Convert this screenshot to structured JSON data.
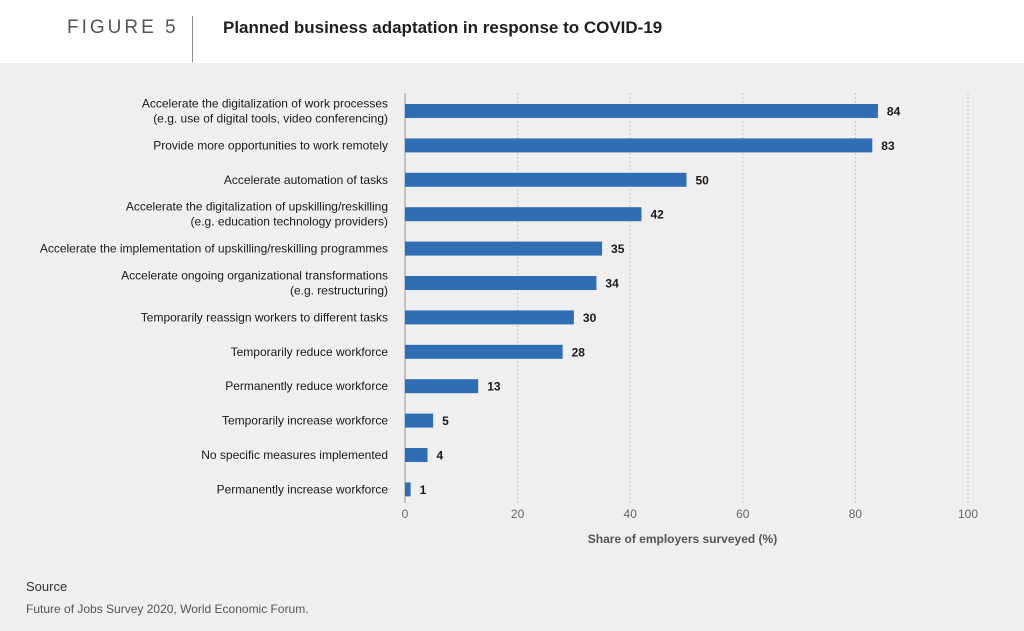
{
  "header": {
    "figure_label": "FIGURE 5",
    "title": "Planned business adaptation in response to COVID-19"
  },
  "source": {
    "heading": "Source",
    "text": "Future of Jobs Survey 2020, World Economic Forum."
  },
  "colors": {
    "bar": "#2f6eb5",
    "panel": "#efefef",
    "grid": "#b9b9b9"
  },
  "chart_data": {
    "type": "bar",
    "orientation": "horizontal",
    "categories": [
      [
        "Accelerate the digitalization of work processes",
        "(e.g. use of digital tools, video conferencing)"
      ],
      [
        "Provide more opportunities to work remotely"
      ],
      [
        "Accelerate automation of tasks"
      ],
      [
        "Accelerate the digitalization of upskilling/reskilling",
        "(e.g. education technology providers)"
      ],
      [
        "Accelerate the implementation of upskilling/reskilling programmes"
      ],
      [
        "Accelerate ongoing organizational transformations",
        "(e.g. restructuring)"
      ],
      [
        "Temporarily reassign workers to different tasks"
      ],
      [
        "Temporarily reduce workforce"
      ],
      [
        "Permanently reduce workforce"
      ],
      [
        "Temporarily increase workforce"
      ],
      [
        "No specific measures implemented"
      ],
      [
        "Permanently increase workforce"
      ]
    ],
    "values": [
      84,
      83,
      50,
      42,
      35,
      34,
      30,
      28,
      13,
      5,
      4,
      1
    ],
    "xlabel": "Share of employers surveyed (%)",
    "xlim": [
      0,
      100
    ],
    "xticks": [
      0,
      20,
      40,
      60,
      80,
      100
    ],
    "grid": "vertical dotted",
    "legend": "none"
  }
}
